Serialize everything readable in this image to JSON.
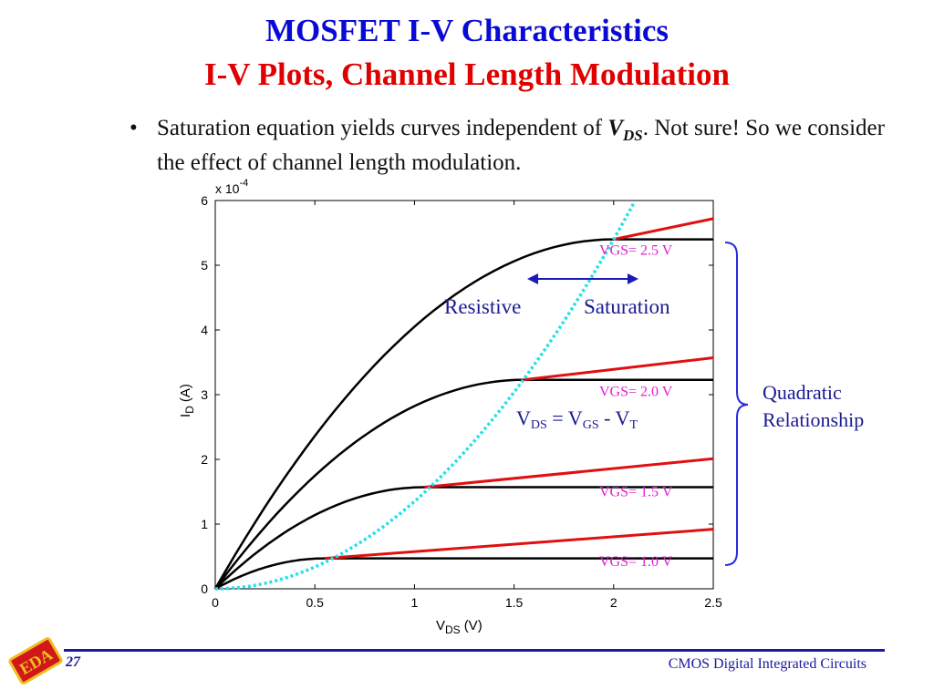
{
  "title_line1": "MOSFET I-V Characteristics",
  "title_line2": "I-V Plots, Channel Length Modulation",
  "bullet": {
    "marker": "•",
    "text_before": "Saturation equation yields curves independent of ",
    "vds_v": "V",
    "vds_sub": "DS",
    "text_after": ". Not sure! So we consider the effect of channel length modulation."
  },
  "footer": {
    "page": "27",
    "course": "CMOS Digital Integrated Circuits"
  },
  "logo_text": "EDA",
  "colors": {
    "title_blue": "#0a0ad6",
    "title_red": "#e00000",
    "red_line": "#e01010",
    "magenta": "#e020d0",
    "cyan": "#22e0e8",
    "bracket_blue": "#2a2ae0"
  },
  "chart_data": {
    "type": "line",
    "xlabel_main": "V",
    "xlabel_sub": "DS",
    "xlabel_unit": "(V)",
    "ylabel_main": "I",
    "ylabel_sub": "D",
    "ylabel_unit": "(A)",
    "y_multiplier_base": "x 10",
    "y_multiplier_exp": "-4",
    "x_ticks": [
      0,
      0.5,
      1,
      1.5,
      2,
      2.5
    ],
    "y_ticks": [
      0,
      1,
      2,
      3,
      4,
      5,
      6
    ],
    "xlim": [
      0,
      2.5
    ],
    "ylim": [
      0,
      6
    ],
    "series": [
      {
        "label": "VGS= 1.0 V",
        "vdsat": 0.55,
        "idsat": 0.47,
        "lambda_end": 0.92
      },
      {
        "label": "VGS= 1.5 V",
        "vdsat": 1.05,
        "idsat": 1.57,
        "lambda_end": 2.01
      },
      {
        "label": "VGS= 2.0 V",
        "vdsat": 1.55,
        "idsat": 3.23,
        "lambda_end": 3.57
      },
      {
        "label": "VGS= 2.5 V",
        "vdsat": 2.0,
        "idsat": 5.4,
        "lambda_end": 5.72
      }
    ],
    "boundary_curve": {
      "label_v": "V",
      "label_ds": "DS",
      "label_eq": " = V",
      "label_gs": "GS",
      "label_minus": " - V",
      "label_t": "T"
    },
    "region_labels": {
      "left": "Resistive",
      "right": "Saturation"
    },
    "bracket_label_line1": "Quadratic",
    "bracket_label_line2": "Relationship"
  }
}
